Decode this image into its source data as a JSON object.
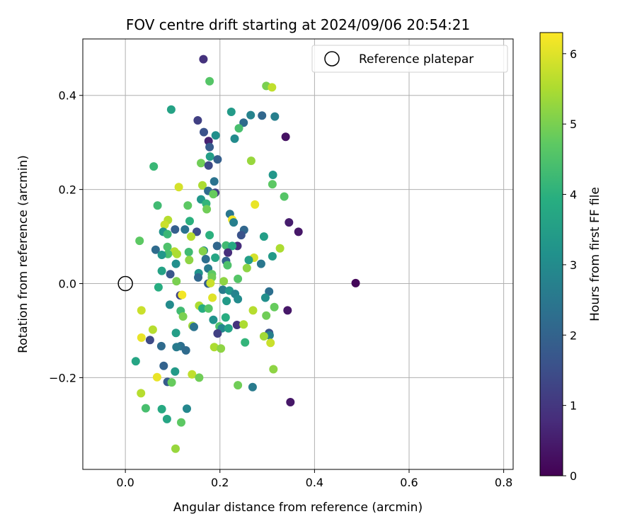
{
  "chart_data": {
    "type": "scatter",
    "title": "FOV centre drift starting at 2024/09/06 20:54:21",
    "xlabel": "Angular distance from reference (arcmin)",
    "ylabel": "Rotation from reference (arcmin)",
    "xlim": [
      -0.09,
      0.82
    ],
    "ylim": [
      -0.395,
      0.52
    ],
    "xticks": [
      0.0,
      0.2,
      0.4,
      0.6,
      0.8
    ],
    "xtick_labels": [
      "0.0",
      "0.2",
      "0.4",
      "0.6",
      "0.8"
    ],
    "yticks": [
      -0.2,
      0.0,
      0.2,
      0.4
    ],
    "ytick_labels": [
      "−0.2",
      "0.0",
      "0.2",
      "0.4"
    ],
    "grid": true,
    "legend": {
      "position": "top-right",
      "label": "Reference platepar"
    },
    "colorbar": {
      "label": "Hours from first FF file",
      "colormap": "viridis",
      "range": [
        0,
        6.3
      ],
      "ticks": [
        0,
        1,
        2,
        3,
        4,
        5,
        6
      ],
      "tick_labels": [
        "0",
        "1",
        "2",
        "3",
        "4",
        "5",
        "6"
      ]
    },
    "reference_point": {
      "x": 0.0,
      "y": 0.0
    },
    "points": [
      {
        "x": 0.165,
        "y": 0.477,
        "h": 0.9
      },
      {
        "x": 0.178,
        "y": 0.43,
        "h": 4.6
      },
      {
        "x": 0.298,
        "y": 0.42,
        "h": 5.0
      },
      {
        "x": 0.31,
        "y": 0.417,
        "h": 5.7
      },
      {
        "x": 0.097,
        "y": 0.37,
        "h": 3.6
      },
      {
        "x": 0.224,
        "y": 0.365,
        "h": 3.4
      },
      {
        "x": 0.265,
        "y": 0.358,
        "h": 2.8
      },
      {
        "x": 0.289,
        "y": 0.357,
        "h": 2.1
      },
      {
        "x": 0.316,
        "y": 0.355,
        "h": 2.7
      },
      {
        "x": 0.153,
        "y": 0.347,
        "h": 1.2
      },
      {
        "x": 0.25,
        "y": 0.342,
        "h": 2.2
      },
      {
        "x": 0.24,
        "y": 0.33,
        "h": 4.4
      },
      {
        "x": 0.166,
        "y": 0.322,
        "h": 1.6
      },
      {
        "x": 0.191,
        "y": 0.315,
        "h": 3.1
      },
      {
        "x": 0.339,
        "y": 0.312,
        "h": 0.3
      },
      {
        "x": 0.231,
        "y": 0.308,
        "h": 3.0
      },
      {
        "x": 0.176,
        "y": 0.303,
        "h": 0.6
      },
      {
        "x": 0.178,
        "y": 0.29,
        "h": 1.8
      },
      {
        "x": 0.179,
        "y": 0.27,
        "h": 3.5
      },
      {
        "x": 0.195,
        "y": 0.264,
        "h": 1.9
      },
      {
        "x": 0.266,
        "y": 0.261,
        "h": 5.3
      },
      {
        "x": 0.16,
        "y": 0.256,
        "h": 4.9
      },
      {
        "x": 0.176,
        "y": 0.251,
        "h": 1.4
      },
      {
        "x": 0.06,
        "y": 0.249,
        "h": 4.2
      },
      {
        "x": 0.312,
        "y": 0.231,
        "h": 3.3
      },
      {
        "x": 0.188,
        "y": 0.217,
        "h": 2.4
      },
      {
        "x": 0.311,
        "y": 0.211,
        "h": 4.7
      },
      {
        "x": 0.163,
        "y": 0.209,
        "h": 5.5
      },
      {
        "x": 0.113,
        "y": 0.205,
        "h": 5.9
      },
      {
        "x": 0.175,
        "y": 0.197,
        "h": 2.2
      },
      {
        "x": 0.19,
        "y": 0.193,
        "h": 1.2
      },
      {
        "x": 0.186,
        "y": 0.19,
        "h": 4.8
      },
      {
        "x": 0.336,
        "y": 0.185,
        "h": 4.6
      },
      {
        "x": 0.16,
        "y": 0.179,
        "h": 3.3
      },
      {
        "x": 0.171,
        "y": 0.17,
        "h": 4.1
      },
      {
        "x": 0.274,
        "y": 0.168,
        "h": 6.1
      },
      {
        "x": 0.068,
        "y": 0.166,
        "h": 4.3
      },
      {
        "x": 0.132,
        "y": 0.166,
        "h": 4.7
      },
      {
        "x": 0.172,
        "y": 0.158,
        "h": 4.9
      },
      {
        "x": 0.221,
        "y": 0.148,
        "h": 2.5
      },
      {
        "x": 0.226,
        "y": 0.136,
        "h": 6.2
      },
      {
        "x": 0.229,
        "y": 0.13,
        "h": 2.7
      },
      {
        "x": 0.346,
        "y": 0.13,
        "h": 0.5
      },
      {
        "x": 0.136,
        "y": 0.133,
        "h": 4.0
      },
      {
        "x": 0.09,
        "y": 0.135,
        "h": 5.6
      },
      {
        "x": 0.083,
        "y": 0.125,
        "h": 5.8
      },
      {
        "x": 0.105,
        "y": 0.115,
        "h": 1.9
      },
      {
        "x": 0.126,
        "y": 0.115,
        "h": 2.4
      },
      {
        "x": 0.151,
        "y": 0.11,
        "h": 1.5
      },
      {
        "x": 0.251,
        "y": 0.114,
        "h": 2.1
      },
      {
        "x": 0.366,
        "y": 0.11,
        "h": 0.4
      },
      {
        "x": 0.08,
        "y": 0.11,
        "h": 3.2
      },
      {
        "x": 0.089,
        "y": 0.105,
        "h": 4.2
      },
      {
        "x": 0.245,
        "y": 0.103,
        "h": 1.6
      },
      {
        "x": 0.178,
        "y": 0.103,
        "h": 4.0
      },
      {
        "x": 0.293,
        "y": 0.1,
        "h": 3.5
      },
      {
        "x": 0.139,
        "y": 0.1,
        "h": 5.6
      },
      {
        "x": 0.03,
        "y": 0.091,
        "h": 4.7
      },
      {
        "x": 0.213,
        "y": 0.081,
        "h": 4.3
      },
      {
        "x": 0.194,
        "y": 0.08,
        "h": 2.1
      },
      {
        "x": 0.237,
        "y": 0.08,
        "h": 0.8
      },
      {
        "x": 0.226,
        "y": 0.08,
        "h": 3.8
      },
      {
        "x": 0.089,
        "y": 0.078,
        "h": 4.5
      },
      {
        "x": 0.327,
        "y": 0.075,
        "h": 5.5
      },
      {
        "x": 0.064,
        "y": 0.072,
        "h": 2.2
      },
      {
        "x": 0.166,
        "y": 0.07,
        "h": 2.9
      },
      {
        "x": 0.217,
        "y": 0.066,
        "h": 0.8
      },
      {
        "x": 0.104,
        "y": 0.068,
        "h": 5.6
      },
      {
        "x": 0.134,
        "y": 0.067,
        "h": 4.3
      },
      {
        "x": 0.164,
        "y": 0.069,
        "h": 5.1
      },
      {
        "x": 0.09,
        "y": 0.063,
        "h": 4.4
      },
      {
        "x": 0.109,
        "y": 0.063,
        "h": 5.5
      },
      {
        "x": 0.077,
        "y": 0.061,
        "h": 3.3
      },
      {
        "x": 0.311,
        "y": 0.058,
        "h": 3.4
      },
      {
        "x": 0.272,
        "y": 0.055,
        "h": 5.9
      },
      {
        "x": 0.19,
        "y": 0.055,
        "h": 3.7
      },
      {
        "x": 0.17,
        "y": 0.052,
        "h": 2.3
      },
      {
        "x": 0.213,
        "y": 0.048,
        "h": 2.0
      },
      {
        "x": 0.261,
        "y": 0.05,
        "h": 3.5
      },
      {
        "x": 0.135,
        "y": 0.05,
        "h": 5.2
      },
      {
        "x": 0.107,
        "y": 0.042,
        "h": 3.1
      },
      {
        "x": 0.287,
        "y": 0.042,
        "h": 2.5
      },
      {
        "x": 0.216,
        "y": 0.039,
        "h": 4.5
      },
      {
        "x": 0.257,
        "y": 0.033,
        "h": 5.2
      },
      {
        "x": 0.175,
        "y": 0.032,
        "h": 2.6
      },
      {
        "x": 0.077,
        "y": 0.027,
        "h": 3.6
      },
      {
        "x": 0.183,
        "y": 0.02,
        "h": 4.7
      },
      {
        "x": 0.155,
        "y": 0.022,
        "h": 3.2
      },
      {
        "x": 0.095,
        "y": 0.02,
        "h": 1.7
      },
      {
        "x": 0.154,
        "y": 0.013,
        "h": 2.1
      },
      {
        "x": 0.183,
        "y": 0.013,
        "h": 4.9
      },
      {
        "x": 0.238,
        "y": 0.01,
        "h": 4.6
      },
      {
        "x": 0.108,
        "y": 0.005,
        "h": 5.0
      },
      {
        "x": 0.208,
        "y": 0.005,
        "h": 5.2
      },
      {
        "x": 0.175,
        "y": 0.0,
        "h": 1.9
      },
      {
        "x": 0.18,
        "y": 0.001,
        "h": 5.8
      },
      {
        "x": 0.487,
        "y": 0.001,
        "h": 0.1
      },
      {
        "x": 0.07,
        "y": -0.008,
        "h": 3.9
      },
      {
        "x": 0.206,
        "y": -0.013,
        "h": 2.6
      },
      {
        "x": 0.22,
        "y": -0.015,
        "h": 3.3
      },
      {
        "x": 0.304,
        "y": -0.017,
        "h": 2.3
      },
      {
        "x": 0.116,
        "y": -0.025,
        "h": 1.3
      },
      {
        "x": 0.12,
        "y": -0.024,
        "h": 6.2
      },
      {
        "x": 0.232,
        "y": -0.022,
        "h": 2.8
      },
      {
        "x": 0.184,
        "y": -0.03,
        "h": 6.0
      },
      {
        "x": 0.296,
        "y": -0.03,
        "h": 3.1
      },
      {
        "x": 0.238,
        "y": -0.033,
        "h": 3.0
      },
      {
        "x": 0.214,
        "y": -0.037,
        "h": 3.4
      },
      {
        "x": 0.094,
        "y": -0.045,
        "h": 3.0
      },
      {
        "x": 0.156,
        "y": -0.047,
        "h": 5.5
      },
      {
        "x": 0.163,
        "y": -0.053,
        "h": 3.9
      },
      {
        "x": 0.315,
        "y": -0.05,
        "h": 4.8
      },
      {
        "x": 0.034,
        "y": -0.057,
        "h": 5.8
      },
      {
        "x": 0.27,
        "y": -0.057,
        "h": 5.6
      },
      {
        "x": 0.343,
        "y": -0.057,
        "h": 0.4
      },
      {
        "x": 0.176,
        "y": -0.053,
        "h": 4.6
      },
      {
        "x": 0.117,
        "y": -0.058,
        "h": 4.3
      },
      {
        "x": 0.298,
        "y": -0.068,
        "h": 4.9
      },
      {
        "x": 0.122,
        "y": -0.07,
        "h": 5.0
      },
      {
        "x": 0.212,
        "y": -0.072,
        "h": 3.9
      },
      {
        "x": 0.186,
        "y": -0.077,
        "h": 3.2
      },
      {
        "x": 0.236,
        "y": -0.088,
        "h": 0.9
      },
      {
        "x": 0.25,
        "y": -0.087,
        "h": 5.5
      },
      {
        "x": 0.199,
        "y": -0.091,
        "h": 4.5
      },
      {
        "x": 0.204,
        "y": -0.095,
        "h": 2.9
      },
      {
        "x": 0.142,
        "y": -0.09,
        "h": 5.4
      },
      {
        "x": 0.145,
        "y": -0.092,
        "h": 2.4
      },
      {
        "x": 0.218,
        "y": -0.095,
        "h": 3.6
      },
      {
        "x": 0.058,
        "y": -0.098,
        "h": 5.6
      },
      {
        "x": 0.195,
        "y": -0.106,
        "h": 1.2
      },
      {
        "x": 0.304,
        "y": -0.105,
        "h": 1.6
      },
      {
        "x": 0.305,
        "y": -0.11,
        "h": 2.7
      },
      {
        "x": 0.107,
        "y": -0.105,
        "h": 3.5
      },
      {
        "x": 0.293,
        "y": -0.112,
        "h": 5.4
      },
      {
        "x": 0.034,
        "y": -0.115,
        "h": 6.1
      },
      {
        "x": 0.052,
        "y": -0.12,
        "h": 1.4
      },
      {
        "x": 0.307,
        "y": -0.126,
        "h": 5.8
      },
      {
        "x": 0.253,
        "y": -0.125,
        "h": 4.1
      },
      {
        "x": 0.076,
        "y": -0.133,
        "h": 2.2
      },
      {
        "x": 0.188,
        "y": -0.135,
        "h": 5.5
      },
      {
        "x": 0.202,
        "y": -0.138,
        "h": 5.2
      },
      {
        "x": 0.117,
        "y": -0.133,
        "h": 2.3
      },
      {
        "x": 0.108,
        "y": -0.135,
        "h": 2.6
      },
      {
        "x": 0.128,
        "y": -0.142,
        "h": 2.2
      },
      {
        "x": 0.022,
        "y": -0.165,
        "h": 3.7
      },
      {
        "x": 0.081,
        "y": -0.175,
        "h": 2.0
      },
      {
        "x": 0.313,
        "y": -0.182,
        "h": 5.2
      },
      {
        "x": 0.105,
        "y": -0.187,
        "h": 3.4
      },
      {
        "x": 0.141,
        "y": -0.193,
        "h": 5.7
      },
      {
        "x": 0.156,
        "y": -0.2,
        "h": 4.9
      },
      {
        "x": 0.067,
        "y": -0.199,
        "h": 6.1
      },
      {
        "x": 0.089,
        "y": -0.209,
        "h": 1.8
      },
      {
        "x": 0.098,
        "y": -0.21,
        "h": 4.8
      },
      {
        "x": 0.238,
        "y": -0.216,
        "h": 4.9
      },
      {
        "x": 0.269,
        "y": -0.22,
        "h": 2.6
      },
      {
        "x": 0.033,
        "y": -0.233,
        "h": 5.6
      },
      {
        "x": 0.349,
        "y": -0.252,
        "h": 0.4
      },
      {
        "x": 0.043,
        "y": -0.265,
        "h": 4.4
      },
      {
        "x": 0.077,
        "y": -0.267,
        "h": 3.8
      },
      {
        "x": 0.13,
        "y": -0.266,
        "h": 2.9
      },
      {
        "x": 0.088,
        "y": -0.288,
        "h": 3.7
      },
      {
        "x": 0.118,
        "y": -0.295,
        "h": 4.7
      },
      {
        "x": 0.106,
        "y": -0.351,
        "h": 5.3
      }
    ]
  }
}
